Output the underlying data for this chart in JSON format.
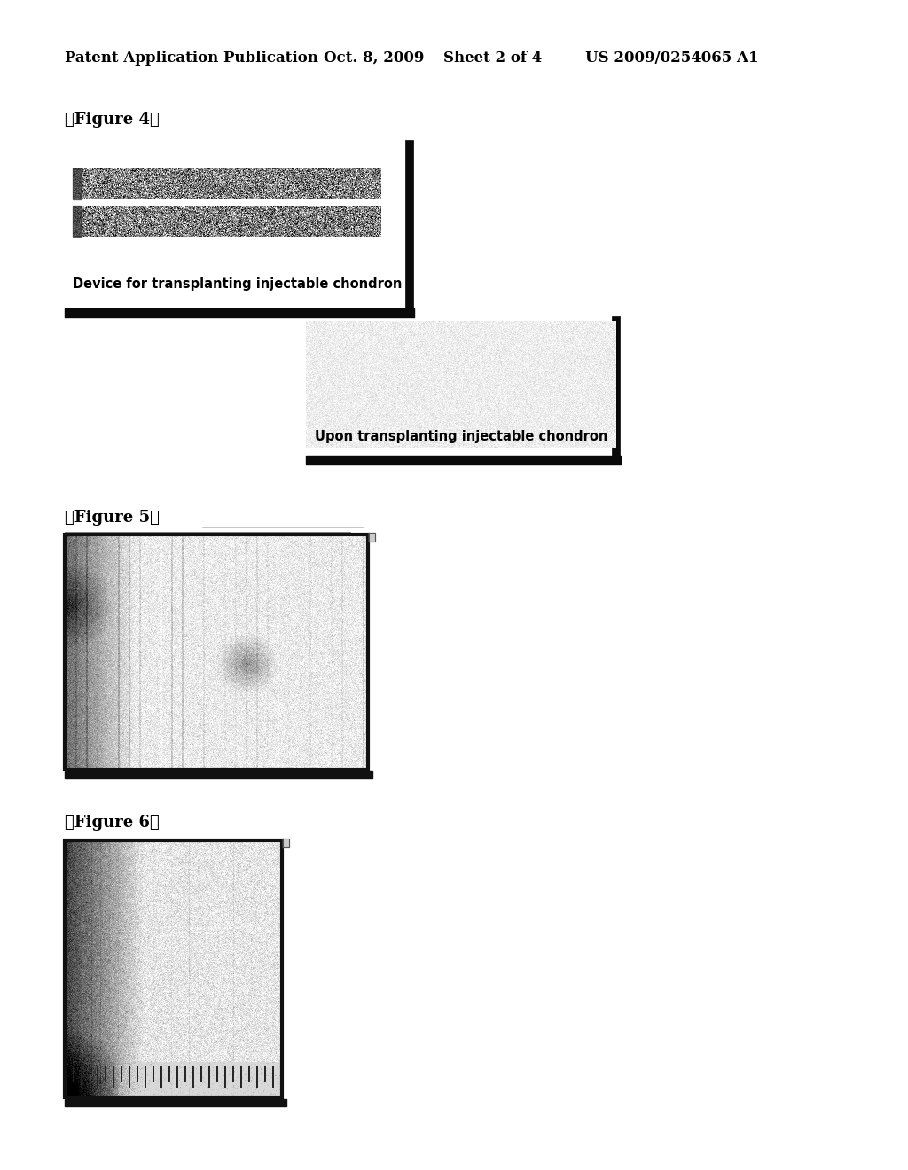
{
  "page_header": "Patent Application Publication",
  "page_date": "Oct. 8, 2009",
  "page_sheet": "Sheet 2 of 4",
  "page_patent": "US 2009/0254065 A1",
  "fig4_label": "【Figure 4】",
  "fig5_label": "【Figure 5】",
  "fig6_label": "【Figure 6】",
  "fig4_caption1": "Device for transplanting injectable chondron",
  "fig4_caption2": "Upon transplanting injectable chondron",
  "background_color": "#ffffff",
  "text_color": "#000000",
  "header_fontsize": 12,
  "figure_label_fontsize": 13,
  "caption_fontsize": 10.5
}
